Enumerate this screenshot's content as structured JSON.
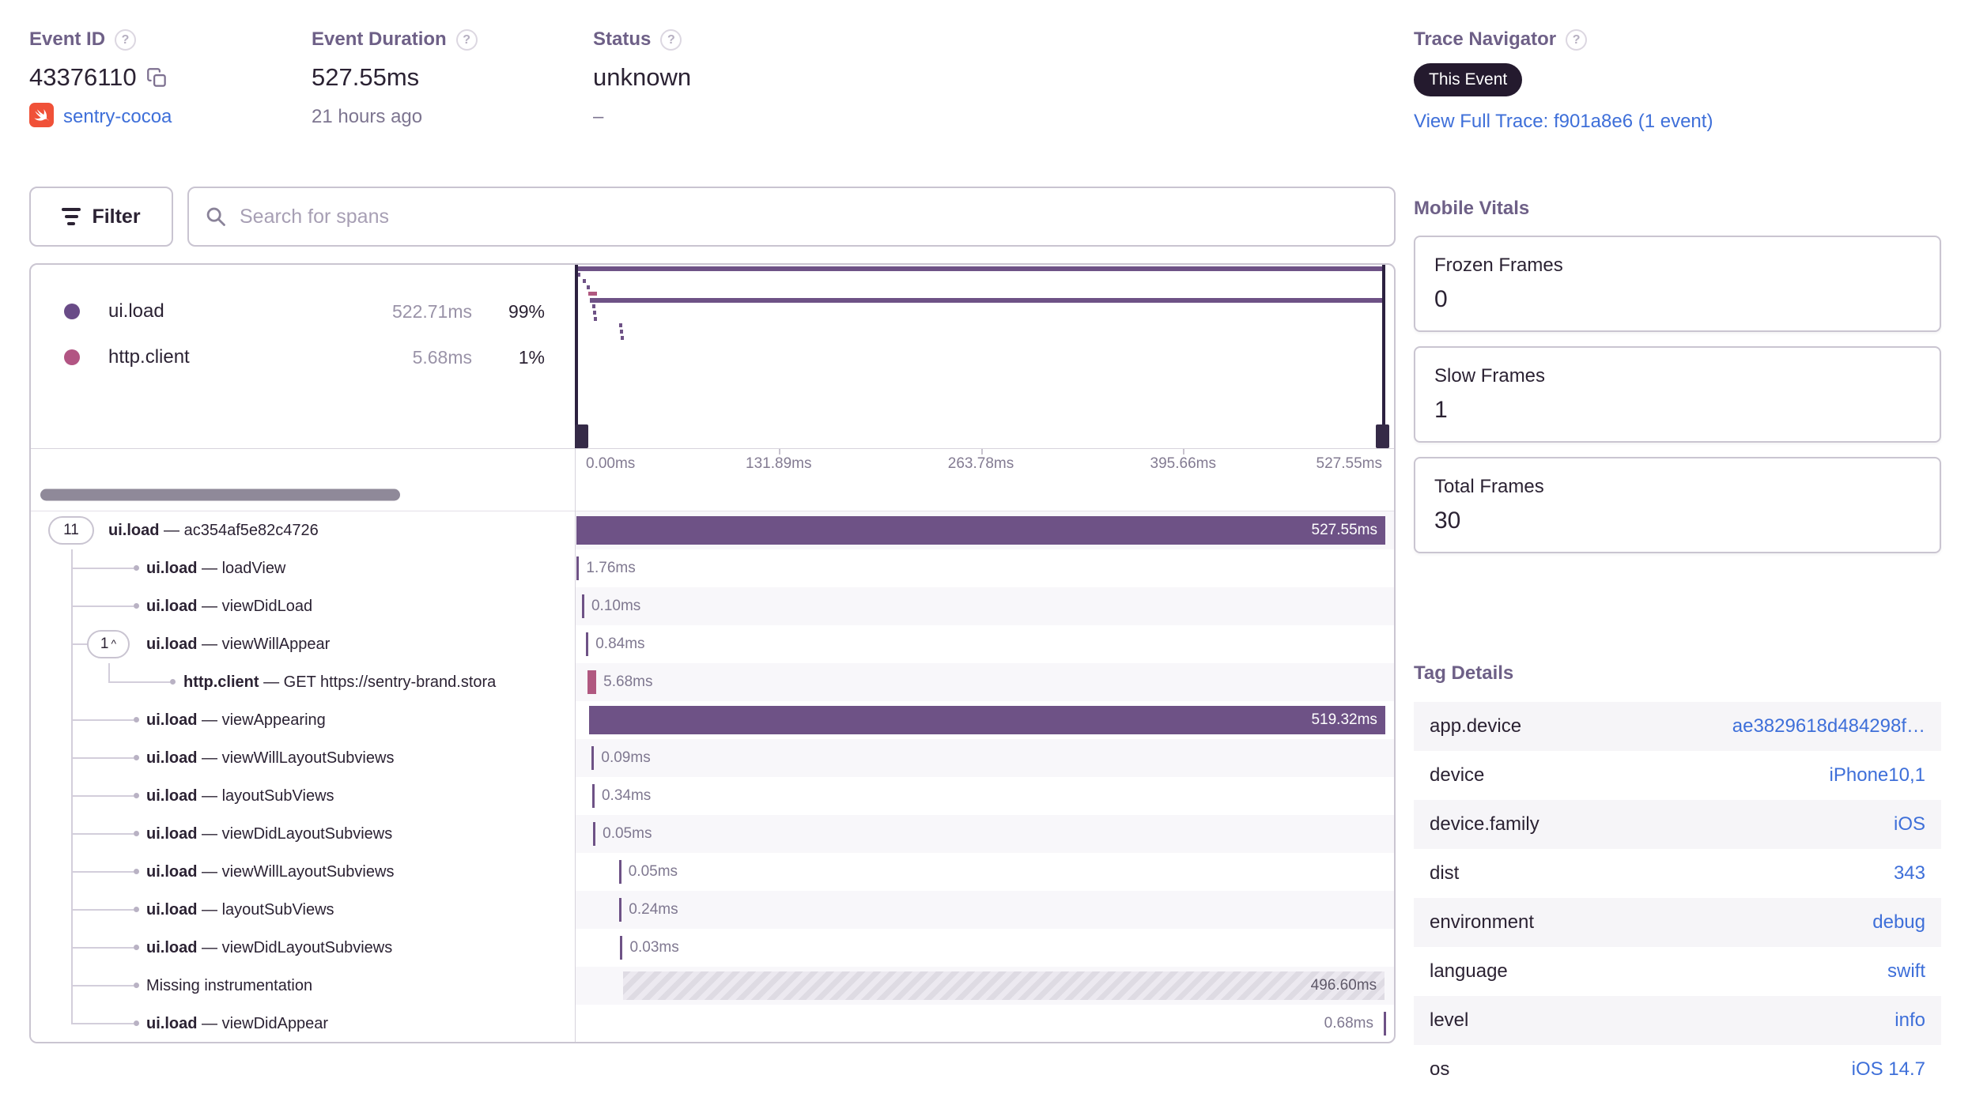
{
  "header": {
    "event_id": {
      "label": "Event ID",
      "value": "43376110",
      "project": "sentry-cocoa"
    },
    "event_duration": {
      "label": "Event Duration",
      "value": "527.55ms",
      "ago": "21 hours ago"
    },
    "status": {
      "label": "Status",
      "value": "unknown",
      "sub": "–"
    },
    "trace_navigator": {
      "label": "Trace Navigator",
      "badge": "This Event",
      "link": "View Full Trace: f901a8e6 (1 event)"
    }
  },
  "toolbar": {
    "filter_label": "Filter",
    "search_placeholder": "Search for spans"
  },
  "waterfall": {
    "total_ms": 527.55,
    "legend": [
      {
        "op": "ui.load",
        "duration": "522.71ms",
        "pct": "99%",
        "color": "#694b87"
      },
      {
        "op": "http.client",
        "duration": "5.68ms",
        "pct": "1%",
        "color": "#b25583"
      }
    ],
    "axis_ticks": [
      "0.00ms",
      "131.89ms",
      "263.78ms",
      "395.66ms",
      "527.55ms"
    ],
    "colors": {
      "span": "#6e5286",
      "http": "#b05880"
    },
    "spans": [
      {
        "badge": "11",
        "op": "ui.load",
        "desc": "ac354af5e82c4726",
        "depth": 0,
        "start_ms": 0,
        "duration_ms": 527.55,
        "duration_label": "527.55ms",
        "bar": "purple",
        "label_pos": "inside"
      },
      {
        "op": "ui.load",
        "desc": "loadView",
        "depth": 1,
        "start_ms": 0,
        "duration_ms": 1.76,
        "duration_label": "1.76ms",
        "bar": "purple",
        "label_pos": "after"
      },
      {
        "op": "ui.load",
        "desc": "viewDidLoad",
        "depth": 1,
        "start_ms": 3.5,
        "duration_ms": 0.1,
        "duration_label": "0.10ms",
        "bar": "purple",
        "label_pos": "after"
      },
      {
        "badge": "1",
        "chevron": "^",
        "op": "ui.load",
        "desc": "viewWillAppear",
        "depth": 1,
        "start_ms": 6.2,
        "duration_ms": 0.84,
        "duration_label": "0.84ms",
        "bar": "purple",
        "label_pos": "after"
      },
      {
        "op": "http.client",
        "desc": "GET https://sentry-brand.stora",
        "depth": 2,
        "start_ms": 7.3,
        "duration_ms": 5.68,
        "duration_label": "5.68ms",
        "bar": "pink",
        "label_pos": "after"
      },
      {
        "op": "ui.load",
        "desc": "viewAppearing",
        "depth": 1,
        "start_ms": 8.2,
        "duration_ms": 519.32,
        "duration_label": "519.32ms",
        "bar": "purple",
        "label_pos": "inside"
      },
      {
        "op": "ui.load",
        "desc": "viewWillLayoutSubviews",
        "depth": 1,
        "start_ms": 9.9,
        "duration_ms": 0.09,
        "duration_label": "0.09ms",
        "bar": "purple",
        "label_pos": "after"
      },
      {
        "op": "ui.load",
        "desc": "layoutSubViews",
        "depth": 1,
        "start_ms": 10.2,
        "duration_ms": 0.34,
        "duration_label": "0.34ms",
        "bar": "purple",
        "label_pos": "after"
      },
      {
        "op": "ui.load",
        "desc": "viewDidLayoutSubviews",
        "depth": 1,
        "start_ms": 10.8,
        "duration_ms": 0.05,
        "duration_label": "0.05ms",
        "bar": "purple",
        "label_pos": "after"
      },
      {
        "op": "ui.load",
        "desc": "viewWillLayoutSubviews",
        "depth": 1,
        "start_ms": 27.6,
        "duration_ms": 0.05,
        "duration_label": "0.05ms",
        "bar": "purple",
        "label_pos": "after"
      },
      {
        "op": "ui.load",
        "desc": "layoutSubViews",
        "depth": 1,
        "start_ms": 27.9,
        "duration_ms": 0.24,
        "duration_label": "0.24ms",
        "bar": "purple",
        "label_pos": "after"
      },
      {
        "op": "ui.load",
        "desc": "viewDidLayoutSubviews",
        "depth": 1,
        "start_ms": 28.5,
        "duration_ms": 0.03,
        "duration_label": "0.03ms",
        "bar": "purple",
        "label_pos": "after"
      },
      {
        "op": "",
        "desc": "Missing instrumentation",
        "depth": 1,
        "start_ms": 30.5,
        "duration_ms": 496.6,
        "duration_label": "496.60ms",
        "bar": "hatch",
        "label_pos": "inside"
      },
      {
        "op": "ui.load",
        "desc": "viewDidAppear",
        "depth": 1,
        "start_ms": 526.5,
        "duration_ms": 0.68,
        "duration_label": "0.68ms",
        "bar": "purple",
        "label_pos": "before"
      }
    ]
  },
  "mobile_vitals": {
    "title": "Mobile Vitals",
    "cards": [
      {
        "label": "Frozen Frames",
        "value": "0"
      },
      {
        "label": "Slow Frames",
        "value": "1"
      },
      {
        "label": "Total Frames",
        "value": "30"
      }
    ]
  },
  "tag_details": {
    "title": "Tag Details",
    "rows": [
      {
        "key": "app.device",
        "value": "ae3829618d484298f…"
      },
      {
        "key": "device",
        "value": "iPhone10,1"
      },
      {
        "key": "device.family",
        "value": "iOS"
      },
      {
        "key": "dist",
        "value": "343"
      },
      {
        "key": "environment",
        "value": "debug"
      },
      {
        "key": "language",
        "value": "swift"
      },
      {
        "key": "level",
        "value": "info"
      },
      {
        "key": "os",
        "value": "iOS 14.7"
      }
    ]
  }
}
